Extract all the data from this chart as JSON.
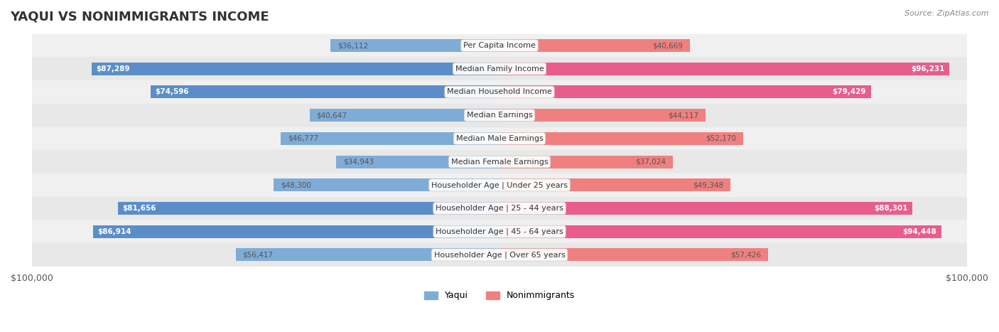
{
  "title": "YAQUI VS NONIMMIGRANTS INCOME",
  "source": "Source: ZipAtlas.com",
  "categories": [
    "Per Capita Income",
    "Median Family Income",
    "Median Household Income",
    "Median Earnings",
    "Median Male Earnings",
    "Median Female Earnings",
    "Householder Age | Under 25 years",
    "Householder Age | 25 - 44 years",
    "Householder Age | 45 - 64 years",
    "Householder Age | Over 65 years"
  ],
  "yaqui_values": [
    36112,
    87289,
    74596,
    40647,
    46777,
    34943,
    48300,
    81656,
    86914,
    56417
  ],
  "nonimmigrant_values": [
    40669,
    96231,
    79429,
    44117,
    52170,
    37024,
    49348,
    88301,
    94448,
    57426
  ],
  "max_value": 100000,
  "yaqui_color": "#7facd6",
  "nonimmigrant_color": "#f08080",
  "yaqui_dark_color": "#5b8ec9",
  "nonimmigrant_dark_color": "#e85d8a",
  "bar_bg_color": "#f0f0f0",
  "row_bg_light": "#f5f5f5",
  "row_bg_dark": "#e8e8e8",
  "label_color_light": "#555555",
  "label_color_dark": "#ffffff",
  "title_color": "#333333",
  "background_color": "#ffffff",
  "figsize": [
    14.06,
    4.67
  ],
  "dpi": 100
}
